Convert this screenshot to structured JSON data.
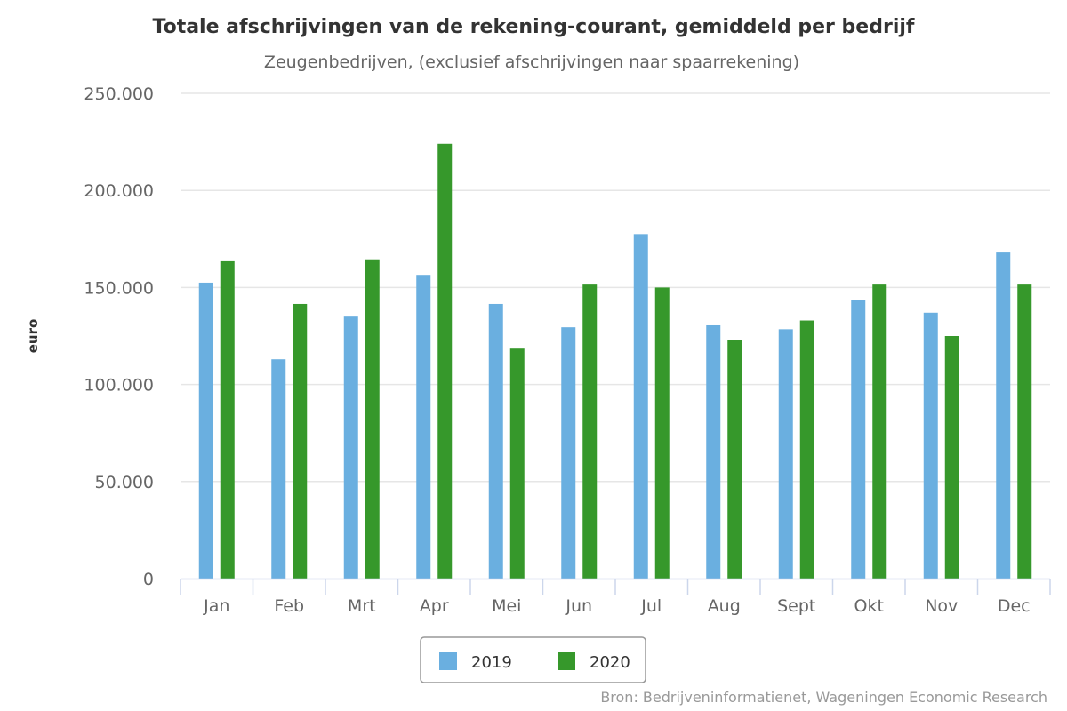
{
  "chart_data": {
    "type": "bar",
    "title": "Totale afschrijvingen van de rekening-courant, gemiddeld per bedrijf",
    "subtitle": "Zeugenbedrijven, (exclusief afschrijvingen naar spaarrekening)",
    "ylabel": "euro",
    "xlabel": "",
    "ylim": [
      0,
      250000
    ],
    "yticks": [
      {
        "value": 0,
        "label": "0"
      },
      {
        "value": 50000,
        "label": "50.000"
      },
      {
        "value": 100000,
        "label": "100.000"
      },
      {
        "value": 150000,
        "label": "150.000"
      },
      {
        "value": 200000,
        "label": "200.000"
      },
      {
        "value": 250000,
        "label": "250.000"
      }
    ],
    "grid": true,
    "legend_position": "bottom-center",
    "categories": [
      "Jan",
      "Feb",
      "Mrt",
      "Apr",
      "Mei",
      "Jun",
      "Jul",
      "Aug",
      "Sept",
      "Okt",
      "Nov",
      "Dec"
    ],
    "series": [
      {
        "name": "2019",
        "color": "#6aafe0",
        "values": [
          152500,
          113000,
          135000,
          156500,
          141500,
          129500,
          177500,
          130500,
          128500,
          143500,
          137000,
          168000
        ]
      },
      {
        "name": "2020",
        "color": "#36982b",
        "values": [
          163500,
          141500,
          164500,
          224000,
          118500,
          151500,
          150000,
          123000,
          133000,
          151500,
          125000,
          151500
        ]
      }
    ],
    "credits": "Bron: Bedrijveninformatienet, Wageningen Economic Research"
  }
}
